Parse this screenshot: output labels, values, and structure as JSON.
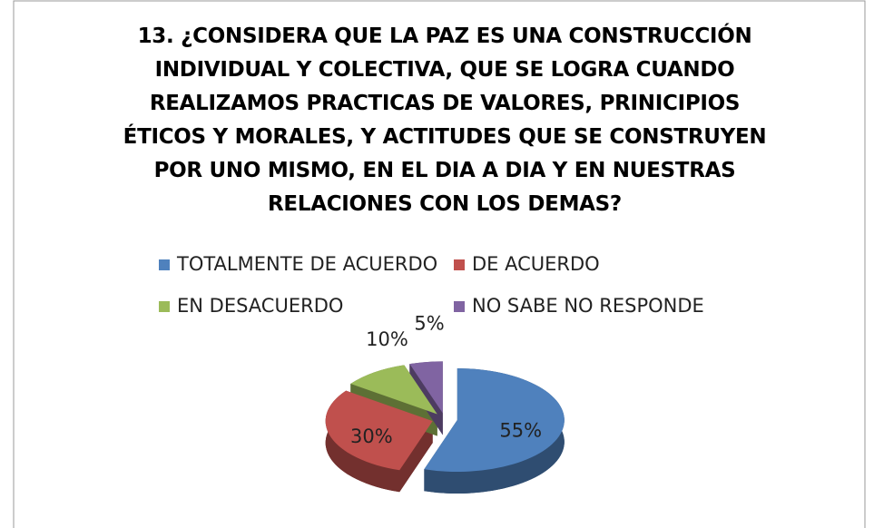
{
  "chart_data": {
    "type": "pie",
    "title": "13. ¿CONSIDERA QUE LA PAZ ES UNA CONSTRUCCIÓN INDIVIDUAL Y COLECTIVA, QUE SE LOGRA CUANDO REALIZAMOS PRACTICAS DE VALORES, PRINICIPIOS ÉTICOS Y MORALES, Y ACTITUDES QUE SE CONSTRUYEN POR UNO MISMO, EN EL DIA A DIA Y EN NUESTRAS RELACIONES CON LOS DEMAS?",
    "categories": [
      "TOTALMENTE DE ACUERDO",
      "DE ACUERDO",
      "EN DESACUERDO",
      "NO SABE NO RESPONDE"
    ],
    "values": [
      55,
      30,
      10,
      5
    ],
    "value_labels": [
      "55%",
      "30%",
      "10%",
      "5%"
    ],
    "colors": [
      "#4f81bd",
      "#c0504d",
      "#9bbb59",
      "#8064a2"
    ],
    "legend": "top"
  }
}
